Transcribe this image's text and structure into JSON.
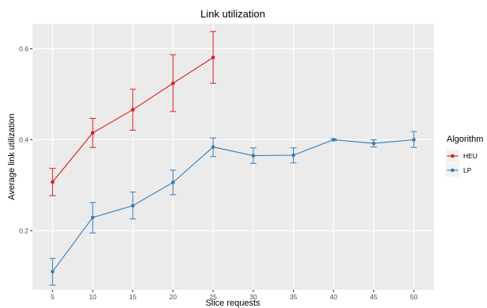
{
  "chart_data": {
    "type": "line",
    "title": "Link utilization",
    "xlabel": "Slice requests",
    "ylabel": "Average link utilization",
    "x": [
      5,
      10,
      15,
      20,
      25,
      30,
      35,
      40,
      45,
      50
    ],
    "x_ticks": [
      "5",
      "10",
      "15",
      "20",
      "25",
      "30",
      "35",
      "40",
      "45",
      "50"
    ],
    "y_ticks": [
      "0.2",
      "0.4",
      "0.6"
    ],
    "xlim": [
      2.5,
      52.5
    ],
    "ylim": [
      0.07,
      0.655
    ],
    "grid": true,
    "legend": {
      "title": "Algorithm",
      "position": "right"
    },
    "series": [
      {
        "name": "HEU",
        "color": "#e41a1c",
        "points": [
          {
            "x": 5,
            "y": 0.307,
            "lo": 0.277,
            "hi": 0.337
          },
          {
            "x": 10,
            "y": 0.415,
            "lo": 0.383,
            "hi": 0.447
          },
          {
            "x": 15,
            "y": 0.466,
            "lo": 0.421,
            "hi": 0.511
          },
          {
            "x": 20,
            "y": 0.524,
            "lo": 0.462,
            "hi": 0.587
          },
          {
            "x": 25,
            "y": 0.581,
            "lo": 0.524,
            "hi": 0.638
          }
        ]
      },
      {
        "name": "LP",
        "color": "#377eb8",
        "points": [
          {
            "x": 5,
            "y": 0.11,
            "lo": 0.08,
            "hi": 0.139
          },
          {
            "x": 10,
            "y": 0.229,
            "lo": 0.195,
            "hi": 0.262
          },
          {
            "x": 15,
            "y": 0.255,
            "lo": 0.226,
            "hi": 0.285
          },
          {
            "x": 20,
            "y": 0.306,
            "lo": 0.279,
            "hi": 0.333
          },
          {
            "x": 25,
            "y": 0.384,
            "lo": 0.363,
            "hi": 0.404
          },
          {
            "x": 30,
            "y": 0.365,
            "lo": 0.348,
            "hi": 0.382
          },
          {
            "x": 35,
            "y": 0.366,
            "lo": 0.349,
            "hi": 0.382
          },
          {
            "x": 40,
            "y": 0.4,
            "lo": 0.398,
            "hi": 0.402
          },
          {
            "x": 45,
            "y": 0.392,
            "lo": 0.384,
            "hi": 0.4
          },
          {
            "x": 50,
            "y": 0.4,
            "lo": 0.383,
            "hi": 0.418
          }
        ]
      }
    ]
  }
}
